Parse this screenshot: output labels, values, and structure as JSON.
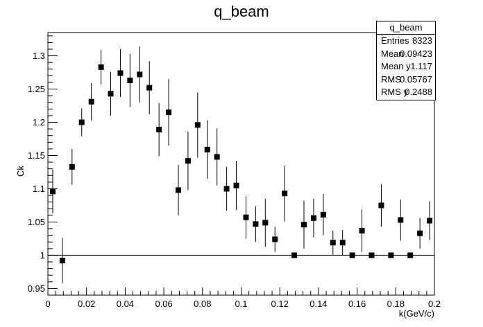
{
  "title": "q_beam",
  "stats": {
    "name": "q_beam",
    "rows": [
      {
        "key": "Entries",
        "value": "8323"
      },
      {
        "key": "Mean",
        "value": "0.09423"
      },
      {
        "key": "Mean y",
        "value": "1.117"
      },
      {
        "key": "RMS",
        "value": "0.05767"
      },
      {
        "key": "RMS y",
        "value": "0.2488"
      }
    ]
  },
  "chart_data": {
    "type": "scatter",
    "title": "q_beam",
    "xlabel": "k(GeV/c)",
    "ylabel": "Ck",
    "xlim": [
      0,
      0.2
    ],
    "ylim": [
      0.94,
      1.335
    ],
    "xticks": [
      "0",
      "0.02",
      "0.04",
      "0.06",
      "0.08",
      "0.1",
      "0.12",
      "0.14",
      "0.16",
      "0.18",
      "0.2"
    ],
    "yticks": [
      "0.95",
      "1",
      "1.05",
      "1.1",
      "1.15",
      "1.2",
      "1.25",
      "1.3"
    ],
    "reference_line_y": 1.0,
    "grid": false,
    "points": [
      {
        "x": 0.0025,
        "y": 1.096,
        "err": 0.033
      },
      {
        "x": 0.0075,
        "y": 0.992,
        "err": 0.034
      },
      {
        "x": 0.0125,
        "y": 1.133,
        "err": 0.027
      },
      {
        "x": 0.0175,
        "y": 1.2,
        "err": 0.021
      },
      {
        "x": 0.0225,
        "y": 1.231,
        "err": 0.028
      },
      {
        "x": 0.0275,
        "y": 1.283,
        "err": 0.026
      },
      {
        "x": 0.0325,
        "y": 1.243,
        "err": 0.033
      },
      {
        "x": 0.0375,
        "y": 1.274,
        "err": 0.036
      },
      {
        "x": 0.0425,
        "y": 1.263,
        "err": 0.04
      },
      {
        "x": 0.0475,
        "y": 1.272,
        "err": 0.042
      },
      {
        "x": 0.0525,
        "y": 1.252,
        "err": 0.04
      },
      {
        "x": 0.0575,
        "y": 1.189,
        "err": 0.04
      },
      {
        "x": 0.0625,
        "y": 1.215,
        "err": 0.05
      },
      {
        "x": 0.0675,
        "y": 1.098,
        "err": 0.038
      },
      {
        "x": 0.0725,
        "y": 1.142,
        "err": 0.044
      },
      {
        "x": 0.0775,
        "y": 1.196,
        "err": 0.049
      },
      {
        "x": 0.0825,
        "y": 1.159,
        "err": 0.044
      },
      {
        "x": 0.0875,
        "y": 1.148,
        "err": 0.043
      },
      {
        "x": 0.0925,
        "y": 1.1,
        "err": 0.033
      },
      {
        "x": 0.0975,
        "y": 1.105,
        "err": 0.037
      },
      {
        "x": 0.1025,
        "y": 1.057,
        "err": 0.032
      },
      {
        "x": 0.1075,
        "y": 1.047,
        "err": 0.027
      },
      {
        "x": 0.1125,
        "y": 1.049,
        "err": 0.036
      },
      {
        "x": 0.1175,
        "y": 1.024,
        "err": 0.019
      },
      {
        "x": 0.1225,
        "y": 1.093,
        "err": 0.042
      },
      {
        "x": 0.1275,
        "y": 1.0,
        "err": 0.0
      },
      {
        "x": 0.1325,
        "y": 1.046,
        "err": 0.036
      },
      {
        "x": 0.1375,
        "y": 1.056,
        "err": 0.029
      },
      {
        "x": 0.1425,
        "y": 1.061,
        "err": 0.031
      },
      {
        "x": 0.1475,
        "y": 1.019,
        "err": 0.018
      },
      {
        "x": 0.1525,
        "y": 1.019,
        "err": 0.019
      },
      {
        "x": 0.1575,
        "y": 1.0,
        "err": 0.0
      },
      {
        "x": 0.1625,
        "y": 1.037,
        "err": 0.032
      },
      {
        "x": 0.1675,
        "y": 1.0,
        "err": 0.0
      },
      {
        "x": 0.1725,
        "y": 1.075,
        "err": 0.032
      },
      {
        "x": 0.1775,
        "y": 1.0,
        "err": 0.0
      },
      {
        "x": 0.1825,
        "y": 1.053,
        "err": 0.031
      },
      {
        "x": 0.1875,
        "y": 1.0,
        "err": 0.0
      },
      {
        "x": 0.1925,
        "y": 1.033,
        "err": 0.023
      },
      {
        "x": 0.1975,
        "y": 1.052,
        "err": 0.029
      }
    ]
  }
}
